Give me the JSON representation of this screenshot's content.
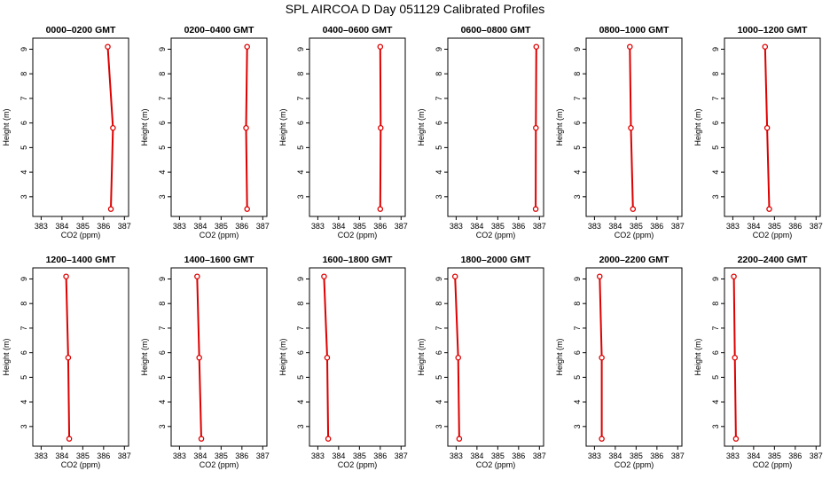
{
  "figure": {
    "title": "SPL AIRCOA D  Day 051129  Calibrated Profiles",
    "series_color": "#dd0000"
  },
  "chart_data": [
    {
      "type": "line",
      "title": "0000–0200 GMT",
      "xlabel": "CO2 (ppm)",
      "ylabel": "Height (m)",
      "xlim": [
        382.6,
        387.2
      ],
      "ylim": [
        2.2,
        9.45
      ],
      "xticks": [
        "383",
        "384",
        "385",
        "386",
        "387"
      ],
      "yticks": [
        "3",
        "4",
        "5",
        "6",
        "7",
        "8",
        "9"
      ],
      "series": [
        {
          "x": [
            386.2,
            386.45,
            386.35
          ],
          "y": [
            9.1,
            5.8,
            2.5
          ]
        }
      ]
    },
    {
      "type": "line",
      "title": "0200–0400 GMT",
      "xlabel": "CO2 (ppm)",
      "ylabel": "Height (m)",
      "xlim": [
        382.6,
        387.2
      ],
      "ylim": [
        2.2,
        9.45
      ],
      "xticks": [
        "383",
        "384",
        "385",
        "386",
        "387"
      ],
      "yticks": [
        "3",
        "4",
        "5",
        "6",
        "7",
        "8",
        "9"
      ],
      "series": [
        {
          "x": [
            386.25,
            386.2,
            386.25
          ],
          "y": [
            9.1,
            5.8,
            2.5
          ]
        }
      ]
    },
    {
      "type": "line",
      "title": "0400–0600 GMT",
      "xlabel": "CO2 (ppm)",
      "ylabel": "Height (m)",
      "xlim": [
        382.6,
        387.2
      ],
      "ylim": [
        2.2,
        9.45
      ],
      "xticks": [
        "383",
        "384",
        "385",
        "386",
        "387"
      ],
      "yticks": [
        "3",
        "4",
        "5",
        "6",
        "7",
        "8",
        "9"
      ],
      "series": [
        {
          "x": [
            386.0,
            386.02,
            386.0
          ],
          "y": [
            9.1,
            5.8,
            2.5
          ]
        }
      ]
    },
    {
      "type": "line",
      "title": "0600–0800 GMT",
      "xlabel": "CO2 (ppm)",
      "ylabel": "Height (m)",
      "xlim": [
        382.6,
        387.2
      ],
      "ylim": [
        2.2,
        9.45
      ],
      "xticks": [
        "383",
        "384",
        "385",
        "386",
        "387"
      ],
      "yticks": [
        "3",
        "4",
        "5",
        "6",
        "7",
        "8",
        "9"
      ],
      "series": [
        {
          "x": [
            386.85,
            386.83,
            386.82
          ],
          "y": [
            9.1,
            5.8,
            2.5
          ]
        }
      ]
    },
    {
      "type": "line",
      "title": "0800–1000 GMT",
      "xlabel": "CO2 (ppm)",
      "ylabel": "Height (m)",
      "xlim": [
        382.6,
        387.2
      ],
      "ylim": [
        2.2,
        9.45
      ],
      "xticks": [
        "383",
        "384",
        "385",
        "386",
        "387"
      ],
      "yticks": [
        "3",
        "4",
        "5",
        "6",
        "7",
        "8",
        "9"
      ],
      "series": [
        {
          "x": [
            384.7,
            384.75,
            384.85
          ],
          "y": [
            9.1,
            5.8,
            2.5
          ]
        }
      ]
    },
    {
      "type": "line",
      "title": "1000–1200 GMT",
      "xlabel": "CO2 (ppm)",
      "ylabel": "Height (m)",
      "xlim": [
        382.6,
        387.2
      ],
      "ylim": [
        2.2,
        9.45
      ],
      "xticks": [
        "383",
        "384",
        "385",
        "386",
        "387"
      ],
      "yticks": [
        "3",
        "4",
        "5",
        "6",
        "7",
        "8",
        "9"
      ],
      "series": [
        {
          "x": [
            384.55,
            384.65,
            384.75
          ],
          "y": [
            9.1,
            5.8,
            2.5
          ]
        }
      ]
    },
    {
      "type": "line",
      "title": "1200–1400 GMT",
      "xlabel": "CO2 (ppm)",
      "ylabel": "Height (m)",
      "xlim": [
        382.6,
        387.2
      ],
      "ylim": [
        2.2,
        9.45
      ],
      "xticks": [
        "383",
        "384",
        "385",
        "386",
        "387"
      ],
      "yticks": [
        "3",
        "4",
        "5",
        "6",
        "7",
        "8",
        "9"
      ],
      "series": [
        {
          "x": [
            384.2,
            384.3,
            384.35
          ],
          "y": [
            9.1,
            5.8,
            2.5
          ]
        }
      ]
    },
    {
      "type": "line",
      "title": "1400–1600 GMT",
      "xlabel": "CO2 (ppm)",
      "ylabel": "Height (m)",
      "xlim": [
        382.6,
        387.2
      ],
      "ylim": [
        2.2,
        9.45
      ],
      "xticks": [
        "383",
        "384",
        "385",
        "386",
        "387"
      ],
      "yticks": [
        "3",
        "4",
        "5",
        "6",
        "7",
        "8",
        "9"
      ],
      "series": [
        {
          "x": [
            383.85,
            383.95,
            384.05
          ],
          "y": [
            9.1,
            5.8,
            2.5
          ]
        }
      ]
    },
    {
      "type": "line",
      "title": "1600–1800 GMT",
      "xlabel": "CO2 (ppm)",
      "ylabel": "Height (m)",
      "xlim": [
        382.6,
        387.2
      ],
      "ylim": [
        2.2,
        9.45
      ],
      "xticks": [
        "383",
        "384",
        "385",
        "386",
        "387"
      ],
      "yticks": [
        "3",
        "4",
        "5",
        "6",
        "7",
        "8",
        "9"
      ],
      "series": [
        {
          "x": [
            383.3,
            383.45,
            383.5
          ],
          "y": [
            9.1,
            5.8,
            2.5
          ]
        }
      ]
    },
    {
      "type": "line",
      "title": "1800–2000 GMT",
      "xlabel": "CO2 (ppm)",
      "ylabel": "Height (m)",
      "xlim": [
        382.6,
        387.2
      ],
      "ylim": [
        2.2,
        9.45
      ],
      "xticks": [
        "383",
        "384",
        "385",
        "386",
        "387"
      ],
      "yticks": [
        "3",
        "4",
        "5",
        "6",
        "7",
        "8",
        "9"
      ],
      "series": [
        {
          "x": [
            382.95,
            383.1,
            383.15
          ],
          "y": [
            9.1,
            5.8,
            2.5
          ]
        }
      ]
    },
    {
      "type": "line",
      "title": "2000–2200 GMT",
      "xlabel": "CO2 (ppm)",
      "ylabel": "Height (m)",
      "xlim": [
        382.6,
        387.2
      ],
      "ylim": [
        2.2,
        9.45
      ],
      "xticks": [
        "383",
        "384",
        "385",
        "386",
        "387"
      ],
      "yticks": [
        "3",
        "4",
        "5",
        "6",
        "7",
        "8",
        "9"
      ],
      "series": [
        {
          "x": [
            383.25,
            383.35,
            383.35
          ],
          "y": [
            9.1,
            5.8,
            2.5
          ]
        }
      ]
    },
    {
      "type": "line",
      "title": "2200–2400 GMT",
      "xlabel": "CO2 (ppm)",
      "ylabel": "Height (m)",
      "xlim": [
        382.6,
        387.2
      ],
      "ylim": [
        2.2,
        9.45
      ],
      "xticks": [
        "383",
        "384",
        "385",
        "386",
        "387"
      ],
      "yticks": [
        "3",
        "4",
        "5",
        "6",
        "7",
        "8",
        "9"
      ],
      "series": [
        {
          "x": [
            383.05,
            383.1,
            383.15
          ],
          "y": [
            9.1,
            5.8,
            2.5
          ]
        }
      ]
    }
  ]
}
